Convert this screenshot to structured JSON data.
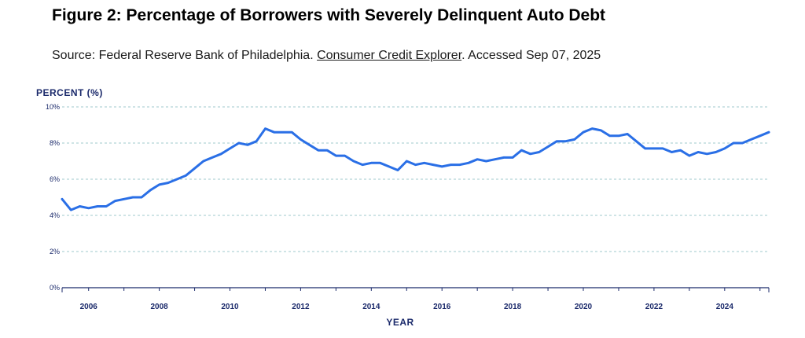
{
  "figure": {
    "title": "Figure 2: Percentage of Borrowers with Severely Delinquent Auto Debt",
    "source_prefix": "Source: Federal Reserve Bank of Philadelphia. ",
    "source_link": "Consumer Credit Explorer",
    "source_suffix": ". Accessed Sep 07, 2025"
  },
  "chart_data": {
    "type": "line",
    "title": "",
    "ylabel": "PERCENT (%)",
    "xlabel": "YEAR",
    "ylim": [
      0,
      10
    ],
    "xlim": [
      2005.25,
      2025.25
    ],
    "yticks": [
      0,
      2,
      4,
      6,
      8,
      10
    ],
    "ytick_labels": [
      "0%",
      "2%",
      "4%",
      "6%",
      "8%",
      "10%"
    ],
    "xticks": [
      2006,
      2008,
      2010,
      2012,
      2014,
      2016,
      2018,
      2020,
      2022,
      2024
    ],
    "xtick_labels": [
      "2006",
      "2008",
      "2010",
      "2012",
      "2014",
      "2016",
      "2018",
      "2020",
      "2022",
      "2024"
    ],
    "grid": "horizontal dashed",
    "line_color": "#2a6fe6",
    "grid_color": "#9fc9cc",
    "series": [
      {
        "x": [
          2005.25,
          2005.5,
          2005.75,
          2006.0,
          2006.25,
          2006.5,
          2006.75,
          2007.0,
          2007.25,
          2007.5,
          2007.75,
          2008.0,
          2008.25,
          2008.5,
          2008.75,
          2009.0,
          2009.25,
          2009.5,
          2009.75,
          2010.0,
          2010.25,
          2010.5,
          2010.75,
          2011.0,
          2011.25,
          2011.5,
          2011.75,
          2012.0,
          2012.25,
          2012.5,
          2012.75,
          2013.0,
          2013.25,
          2013.5,
          2013.75,
          2014.0,
          2014.25,
          2014.5,
          2014.75,
          2015.0,
          2015.25,
          2015.5,
          2015.75,
          2016.0,
          2016.25,
          2016.5,
          2016.75,
          2017.0,
          2017.25,
          2017.5,
          2017.75,
          2018.0,
          2018.25,
          2018.5,
          2018.75,
          2019.0,
          2019.25,
          2019.5,
          2019.75,
          2020.0,
          2020.25,
          2020.5,
          2020.75,
          2021.0,
          2021.25,
          2021.5,
          2021.75,
          2022.0,
          2022.25,
          2022.5,
          2022.75,
          2023.0,
          2023.25,
          2023.5,
          2023.75,
          2024.0,
          2024.25,
          2024.5,
          2024.75,
          2025.0,
          2025.25
        ],
        "values": [
          4.9,
          4.3,
          4.5,
          4.4,
          4.5,
          4.5,
          4.8,
          4.9,
          5.0,
          5.0,
          5.4,
          5.7,
          5.8,
          6.0,
          6.2,
          6.6,
          7.0,
          7.2,
          7.4,
          7.7,
          8.0,
          7.9,
          8.1,
          8.8,
          8.6,
          8.6,
          8.6,
          8.2,
          7.9,
          7.6,
          7.6,
          7.3,
          7.3,
          7.0,
          6.8,
          6.9,
          6.9,
          6.7,
          6.5,
          7.0,
          6.8,
          6.9,
          6.8,
          6.7,
          6.8,
          6.8,
          6.9,
          7.1,
          7.0,
          7.1,
          7.2,
          7.2,
          7.6,
          7.4,
          7.5,
          7.8,
          8.1,
          8.1,
          8.2,
          8.6,
          8.8,
          8.7,
          8.4,
          8.4,
          8.5,
          8.1,
          7.7,
          7.7,
          7.7,
          7.5,
          7.6,
          7.3,
          7.5,
          7.4,
          7.5,
          7.7,
          8.0,
          8.0,
          8.2,
          8.4,
          8.6
        ]
      }
    ]
  }
}
